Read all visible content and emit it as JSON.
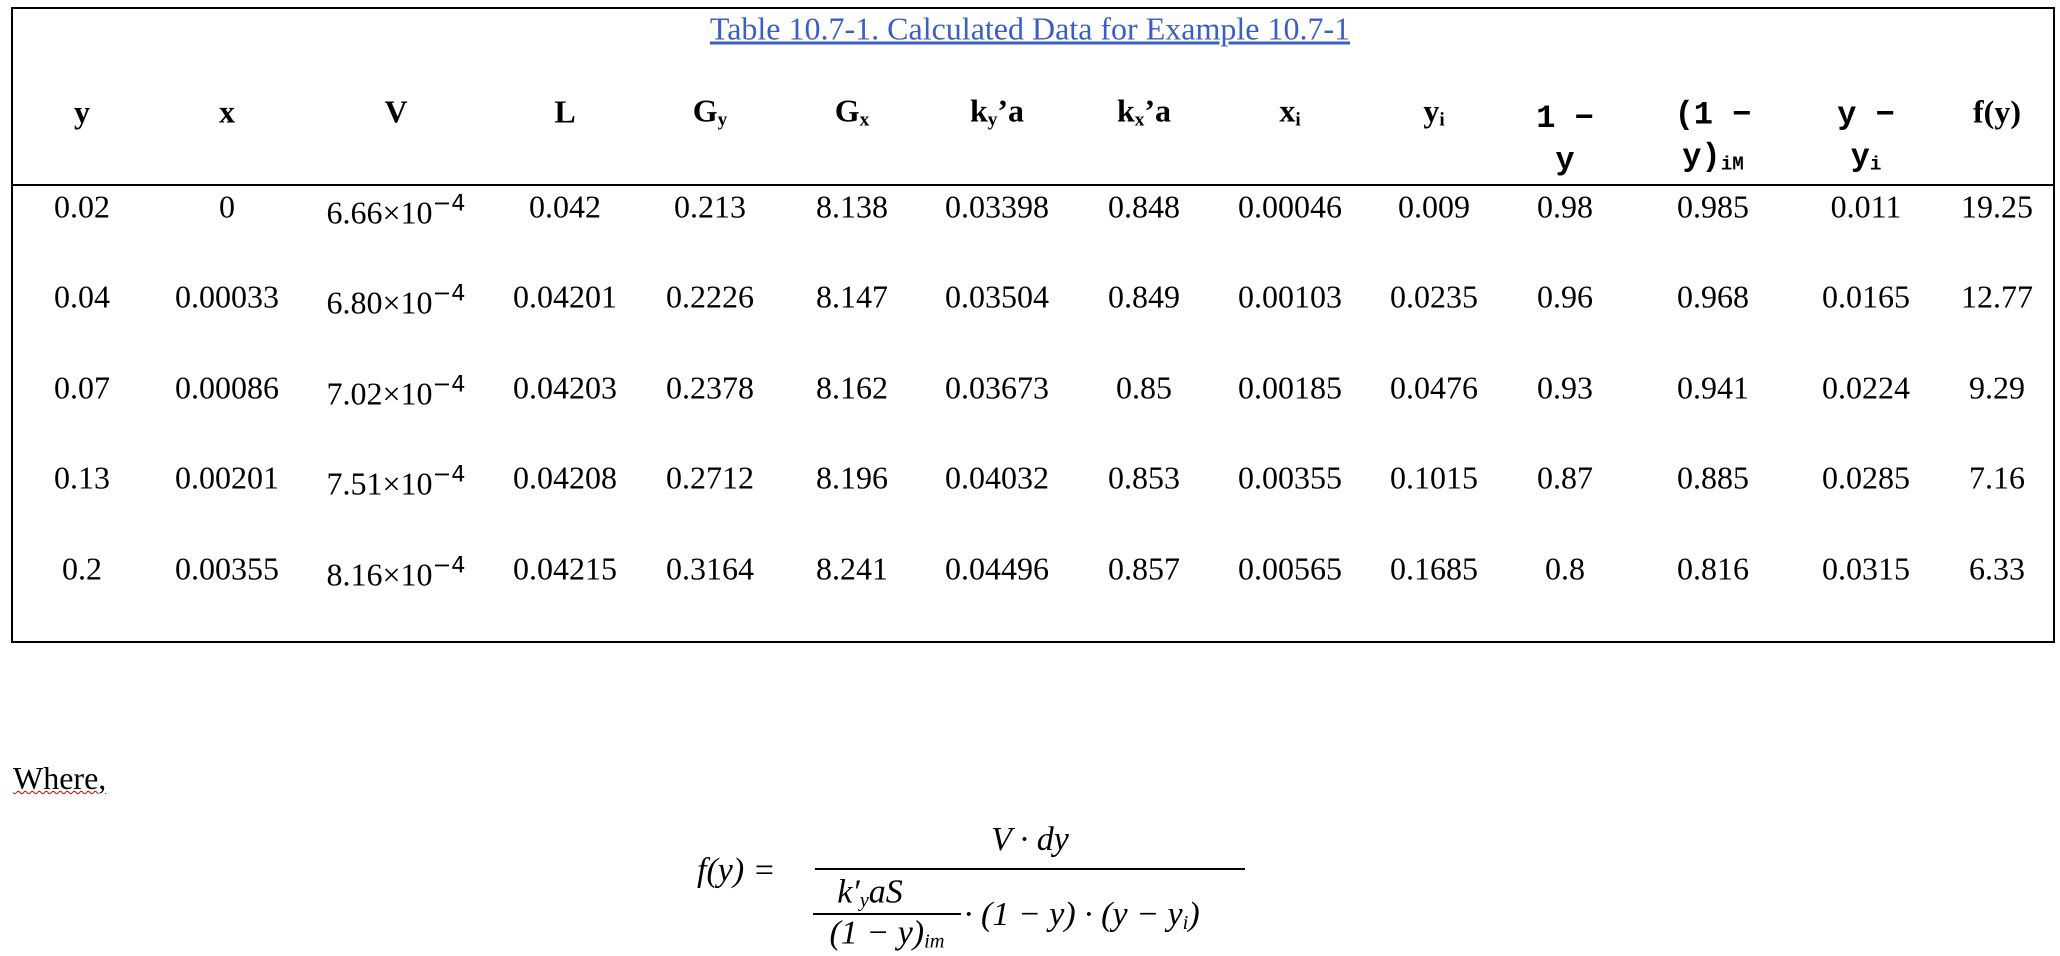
{
  "title": "Table 10.7-1. Calculated Data for Example 10.7-1",
  "table": {
    "headers": [
      {
        "main": "y"
      },
      {
        "main": "x"
      },
      {
        "main": "V"
      },
      {
        "main": "L"
      },
      {
        "main": "G",
        "sub": "y"
      },
      {
        "main": "G",
        "sub": "x"
      },
      {
        "main": "k",
        "sub": "y",
        "rest": "’a"
      },
      {
        "main": "k",
        "sub": "x",
        "rest": "’a"
      },
      {
        "main": "x",
        "sub": "i"
      },
      {
        "main": "y",
        "sub": "i"
      },
      {
        "main": "1 − y"
      },
      {
        "main": "(1 − y)",
        "sub": "iM"
      },
      {
        "main": "y − y",
        "sub": "i"
      },
      {
        "main": "f(y)"
      }
    ],
    "rows": [
      [
        "0.02",
        "0",
        {
          "mantissa": "6.66",
          "mult": "×10",
          "exp": "−4"
        },
        "0.042",
        "0.213",
        "8.138",
        "0.03398",
        "0.848",
        "0.00046",
        "0.009",
        "0.98",
        "0.985",
        "0.011",
        "19.25"
      ],
      [
        "0.04",
        "0.00033",
        {
          "mantissa": "6.80",
          "mult": "×10",
          "exp": "−4"
        },
        "0.04201",
        "0.2226",
        "8.147",
        "0.03504",
        "0.849",
        "0.00103",
        "0.0235",
        "0.96",
        "0.968",
        "0.0165",
        "12.77"
      ],
      [
        "0.07",
        "0.00086",
        {
          "mantissa": "7.02",
          "mult": "×10",
          "exp": "−4"
        },
        "0.04203",
        "0.2378",
        "8.162",
        "0.03673",
        "0.85",
        "0.00185",
        "0.0476",
        "0.93",
        "0.941",
        "0.0224",
        "9.29"
      ],
      [
        "0.13",
        "0.00201",
        {
          "mantissa": "7.51",
          "mult": "×10",
          "exp": "−4"
        },
        "0.04208",
        "0.2712",
        "8.196",
        "0.04032",
        "0.853",
        "0.00355",
        "0.1015",
        "0.87",
        "0.885",
        "0.0285",
        "7.16"
      ],
      [
        "0.2",
        "0.00355",
        {
          "mantissa": "8.16",
          "mult": "×10",
          "exp": "−4"
        },
        "0.04215",
        "0.3164",
        "8.241",
        "0.04496",
        "0.857",
        "0.00565",
        "0.1685",
        "0.8",
        "0.816",
        "0.0315",
        "6.33"
      ]
    ]
  },
  "where": "Where,",
  "formula": {
    "lhs": "f(y) =",
    "numerator": "V · dy",
    "inner_numerator": {
      "main": "k′",
      "sub": "y",
      "rest": "aS"
    },
    "inner_denominator": {
      "main": "(1 − y)",
      "sub": "im"
    },
    "tail": {
      "main": "· (1 − y) · (y − y",
      "sub": "i",
      "end": ")"
    }
  }
}
